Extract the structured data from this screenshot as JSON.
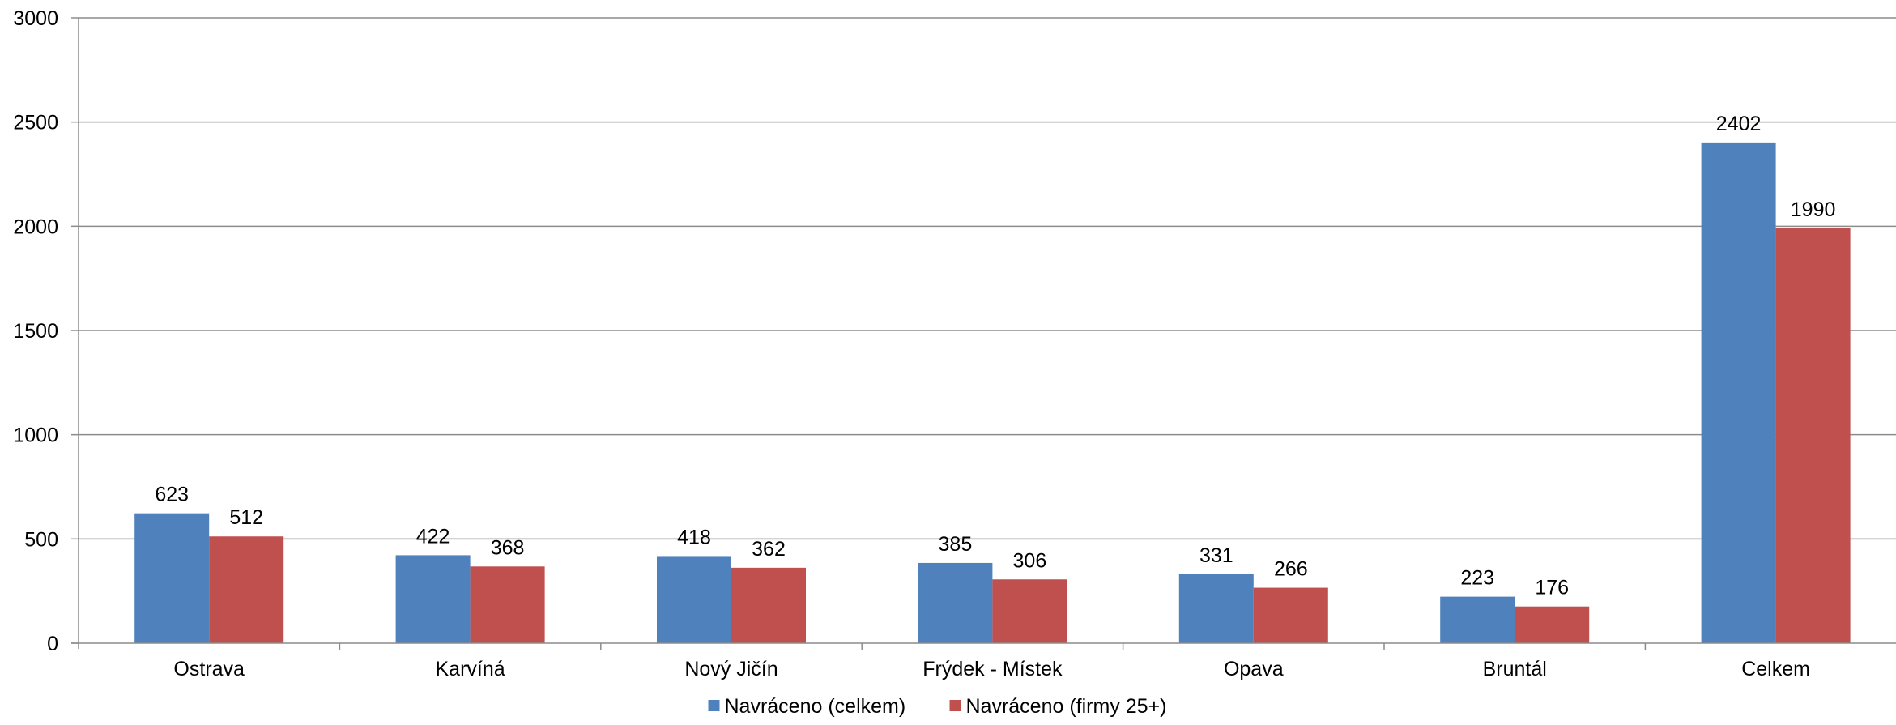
{
  "chart_data": {
    "type": "bar",
    "categories": [
      "Ostrava",
      "Karvíná",
      "Nový Jičín",
      "Frýdek - Místek",
      "Opava",
      "Bruntál",
      "Celkem"
    ],
    "series": [
      {
        "name": "Navráceno (celkem)",
        "color": "#4f81bd",
        "values": [
          623,
          422,
          418,
          385,
          331,
          223,
          2402
        ]
      },
      {
        "name": "Navráceno (firmy 25+)",
        "color": "#c0504d",
        "values": [
          512,
          368,
          362,
          306,
          266,
          176,
          1990
        ]
      }
    ],
    "title": "",
    "xlabel": "",
    "ylabel": "",
    "ylim": [
      0,
      3000
    ],
    "yticks": [
      0,
      500,
      1000,
      1500,
      2000,
      2500,
      3000
    ],
    "grid": true,
    "data_labels": true,
    "legend_position": "bottom"
  }
}
